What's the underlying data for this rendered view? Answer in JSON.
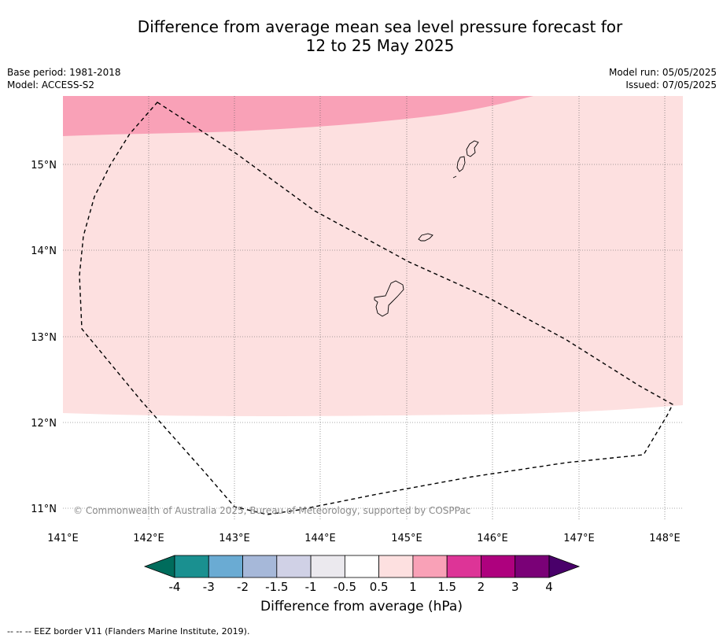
{
  "title_line1": "Difference from average mean sea level pressure forecast for",
  "title_line2": "12 to 25 May 2025",
  "meta": {
    "base_period": "Base period: 1981-2018",
    "model": "Model: ACCESS-S2",
    "model_run": "Model run: 05/05/2025",
    "issued": "Issued: 07/05/2025"
  },
  "map": {
    "lon_labels": [
      "141°E",
      "142°E",
      "143°E",
      "144°E",
      "145°E",
      "146°E",
      "147°E",
      "148°E"
    ],
    "lat_labels": [
      "15°N",
      "14°N",
      "13°N",
      "12°N",
      "11°N"
    ],
    "copyright": "© Commonwealth of Australia 2025, Bureau of Meteorology, supported by COSPPac",
    "fill_colors": {
      "band_1_to_1_5": "#f9a1b7",
      "band_0_5_to_1": "#fde0e0"
    }
  },
  "colorbar": {
    "ticks": [
      "-4",
      "-3",
      "-2",
      "-1.5",
      "-1",
      "-0.5",
      "0.5",
      "1",
      "1.5",
      "2",
      "3",
      "4"
    ],
    "colors": [
      "#1a9090",
      "#6aabd3",
      "#a6b8d9",
      "#d0d1e6",
      "#ebe9ee",
      "#ffffff",
      "#fde0e0",
      "#f9a1b7",
      "#dd3497",
      "#ae017e",
      "#7a0177"
    ],
    "under_color": "#006c5c",
    "over_color": "#49006a",
    "title": "Difference from average (hPa)"
  },
  "footnote": "--  --  -- EEZ border V11 (Flanders Marine Institute, 2019)."
}
